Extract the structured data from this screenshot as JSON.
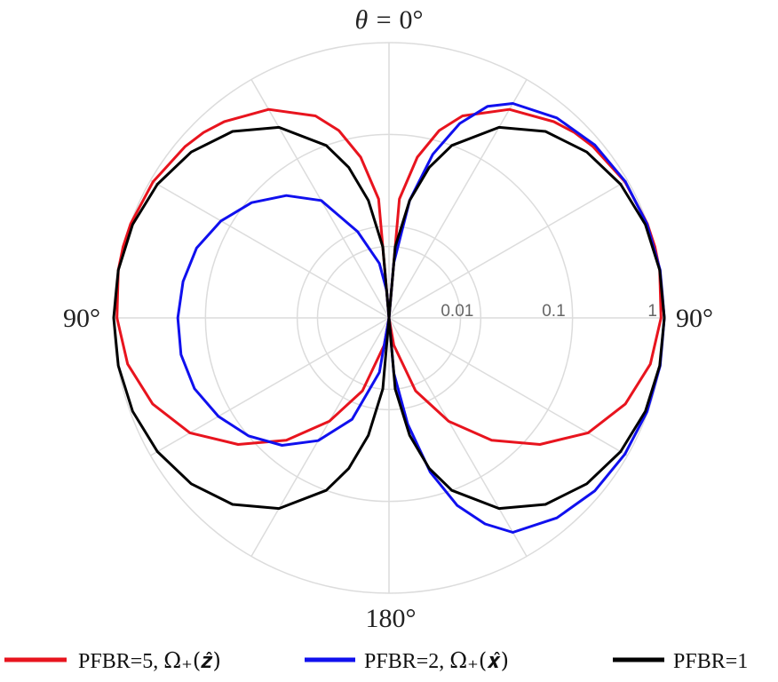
{
  "chart_data": {
    "type": "polar-line",
    "radial_axis": {
      "scale": "log",
      "range": [
        0.001,
        1
      ],
      "tick_values": [
        0.01,
        0.1,
        1
      ],
      "tick_labels": [
        "0.01",
        "0.1",
        "1"
      ]
    },
    "angular_axis": {
      "grid_step_deg": 30,
      "zero_direction": "top",
      "labels": {
        "top": {
          "prefix": "θ = ",
          "value": "0°"
        },
        "left": "90°",
        "right": "90°",
        "bottom": "180°"
      }
    },
    "grid": true,
    "legend_position": "bottom",
    "series": [
      {
        "name": "PFBR=5, ",
        "name_math": "Ω₊(𝒛̂)",
        "color": "#e8141e",
        "points": [
          [
            0,
            0.001
          ],
          [
            5,
            0.02
          ],
          [
            10,
            0.06
          ],
          [
            15,
            0.13
          ],
          [
            20,
            0.22
          ],
          [
            30,
            0.42
          ],
          [
            40,
            0.62
          ],
          [
            45,
            0.72
          ],
          [
            50,
            0.8
          ],
          [
            60,
            0.93
          ],
          [
            70,
            0.99
          ],
          [
            75,
            1.0
          ],
          [
            80,
            0.99
          ],
          [
            90,
            0.92
          ],
          [
            100,
            0.78
          ],
          [
            110,
            0.55
          ],
          [
            120,
            0.32
          ],
          [
            130,
            0.14
          ],
          [
            140,
            0.055
          ],
          [
            150,
            0.02
          ],
          [
            160,
            0.007
          ],
          [
            170,
            0.002
          ],
          [
            180,
            0.001
          ]
        ]
      },
      {
        "name": "PFBR=2, ",
        "name_math": "Ω₊(𝒙̂)",
        "color": "#1010ee",
        "points": [
          [
            0,
            0.001
          ],
          [
            5,
            0.004
          ],
          [
            10,
            0.02
          ],
          [
            15,
            0.07
          ],
          [
            20,
            0.18
          ],
          [
            25,
            0.35
          ],
          [
            30,
            0.5
          ],
          [
            40,
            0.7
          ],
          [
            50,
            0.85
          ],
          [
            60,
            0.94
          ],
          [
            70,
            0.98
          ],
          [
            80,
            1.0
          ],
          [
            90,
            1.0
          ],
          [
            100,
            1.0
          ],
          [
            110,
            0.98
          ],
          [
            120,
            0.93
          ],
          [
            130,
            0.85
          ],
          [
            140,
            0.7
          ],
          [
            150,
            0.5
          ],
          [
            155,
            0.3
          ],
          [
            160,
            0.15
          ],
          [
            165,
            0.055
          ],
          [
            170,
            0.015
          ],
          [
            175,
            0.004
          ],
          [
            180,
            0.001
          ]
        ],
        "points_left": [
          [
            0,
            0.001
          ],
          [
            5,
            0.002
          ],
          [
            10,
            0.004
          ],
          [
            20,
            0.01
          ],
          [
            30,
            0.03
          ],
          [
            40,
            0.055
          ],
          [
            50,
            0.09
          ],
          [
            60,
            0.13
          ],
          [
            70,
            0.17
          ],
          [
            80,
            0.19
          ],
          [
            90,
            0.2
          ],
          [
            100,
            0.2
          ],
          [
            110,
            0.18
          ],
          [
            120,
            0.14
          ],
          [
            130,
            0.1
          ],
          [
            140,
            0.065
          ],
          [
            150,
            0.035
          ],
          [
            160,
            0.015
          ],
          [
            170,
            0.004
          ],
          [
            180,
            0.001
          ]
        ]
      },
      {
        "name": "PFBR=1",
        "name_math": "",
        "color": "#000000",
        "points": [
          [
            0,
            0.001
          ],
          [
            5,
            0.006
          ],
          [
            10,
            0.02
          ],
          [
            15,
            0.05
          ],
          [
            20,
            0.1
          ],
          [
            30,
            0.25
          ],
          [
            40,
            0.45
          ],
          [
            50,
            0.65
          ],
          [
            60,
            0.82
          ],
          [
            70,
            0.94
          ],
          [
            80,
            0.99
          ],
          [
            90,
            1.0
          ],
          [
            100,
            0.99
          ],
          [
            110,
            0.94
          ],
          [
            120,
            0.82
          ],
          [
            130,
            0.65
          ],
          [
            140,
            0.45
          ],
          [
            150,
            0.25
          ],
          [
            160,
            0.1
          ],
          [
            165,
            0.05
          ],
          [
            170,
            0.02
          ],
          [
            175,
            0.006
          ],
          [
            180,
            0.001
          ]
        ]
      }
    ]
  }
}
